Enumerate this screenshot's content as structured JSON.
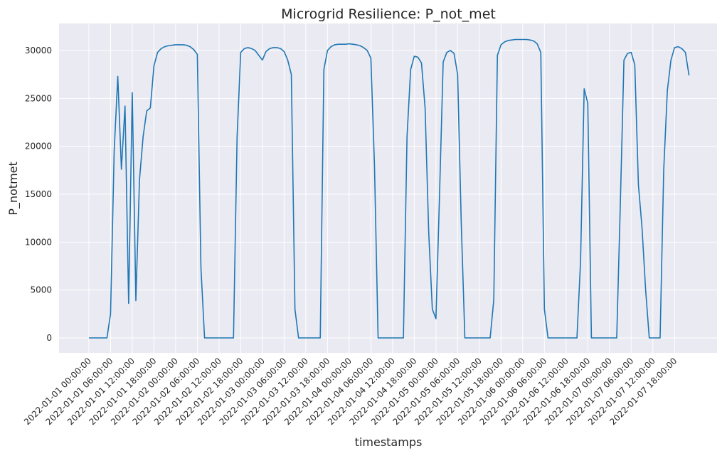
{
  "chart_data": {
    "type": "line",
    "title": "Microgrid Resilience: P_not_met",
    "x_label": "timestamps",
    "y_label": "P_notmet",
    "grid": true,
    "background": "#eaeaf2",
    "x": [
      "2022-01-01 00:00:00",
      "2022-01-01 01:00:00",
      "2022-01-01 02:00:00",
      "2022-01-01 03:00:00",
      "2022-01-01 04:00:00",
      "2022-01-01 05:00:00",
      "2022-01-01 06:00:00",
      "2022-01-01 07:00:00",
      "2022-01-01 08:00:00",
      "2022-01-01 09:00:00",
      "2022-01-01 10:00:00",
      "2022-01-01 11:00:00",
      "2022-01-01 12:00:00",
      "2022-01-01 13:00:00",
      "2022-01-01 14:00:00",
      "2022-01-01 15:00:00",
      "2022-01-01 16:00:00",
      "2022-01-01 17:00:00",
      "2022-01-01 18:00:00",
      "2022-01-01 19:00:00",
      "2022-01-01 20:00:00",
      "2022-01-01 21:00:00",
      "2022-01-01 22:00:00",
      "2022-01-01 23:00:00",
      "2022-01-02 00:00:00",
      "2022-01-02 01:00:00",
      "2022-01-02 02:00:00",
      "2022-01-02 03:00:00",
      "2022-01-02 04:00:00",
      "2022-01-02 05:00:00",
      "2022-01-02 06:00:00",
      "2022-01-02 07:00:00",
      "2022-01-02 08:00:00",
      "2022-01-02 09:00:00",
      "2022-01-02 10:00:00",
      "2022-01-02 11:00:00",
      "2022-01-02 12:00:00",
      "2022-01-02 13:00:00",
      "2022-01-02 14:00:00",
      "2022-01-02 15:00:00",
      "2022-01-02 16:00:00",
      "2022-01-02 17:00:00",
      "2022-01-02 18:00:00",
      "2022-01-02 19:00:00",
      "2022-01-02 20:00:00",
      "2022-01-02 21:00:00",
      "2022-01-02 22:00:00",
      "2022-01-02 23:00:00",
      "2022-01-03 00:00:00",
      "2022-01-03 01:00:00",
      "2022-01-03 02:00:00",
      "2022-01-03 03:00:00",
      "2022-01-03 04:00:00",
      "2022-01-03 05:00:00",
      "2022-01-03 06:00:00",
      "2022-01-03 07:00:00",
      "2022-01-03 08:00:00",
      "2022-01-03 09:00:00",
      "2022-01-03 10:00:00",
      "2022-01-03 11:00:00",
      "2022-01-03 12:00:00",
      "2022-01-03 13:00:00",
      "2022-01-03 14:00:00",
      "2022-01-03 15:00:00",
      "2022-01-03 16:00:00",
      "2022-01-03 17:00:00",
      "2022-01-03 18:00:00",
      "2022-01-03 19:00:00",
      "2022-01-03 20:00:00",
      "2022-01-03 21:00:00",
      "2022-01-03 22:00:00",
      "2022-01-03 23:00:00",
      "2022-01-04 00:00:00",
      "2022-01-04 01:00:00",
      "2022-01-04 02:00:00",
      "2022-01-04 03:00:00",
      "2022-01-04 04:00:00",
      "2022-01-04 05:00:00",
      "2022-01-04 06:00:00",
      "2022-01-04 07:00:00",
      "2022-01-04 08:00:00",
      "2022-01-04 09:00:00",
      "2022-01-04 10:00:00",
      "2022-01-04 11:00:00",
      "2022-01-04 12:00:00",
      "2022-01-04 13:00:00",
      "2022-01-04 14:00:00",
      "2022-01-04 15:00:00",
      "2022-01-04 16:00:00",
      "2022-01-04 17:00:00",
      "2022-01-04 18:00:00",
      "2022-01-04 19:00:00",
      "2022-01-04 20:00:00",
      "2022-01-04 21:00:00",
      "2022-01-04 22:00:00",
      "2022-01-04 23:00:00",
      "2022-01-05 00:00:00",
      "2022-01-05 01:00:00",
      "2022-01-05 02:00:00",
      "2022-01-05 03:00:00",
      "2022-01-05 04:00:00",
      "2022-01-05 05:00:00",
      "2022-01-05 06:00:00",
      "2022-01-05 07:00:00",
      "2022-01-05 08:00:00",
      "2022-01-05 09:00:00",
      "2022-01-05 10:00:00",
      "2022-01-05 11:00:00",
      "2022-01-05 12:00:00",
      "2022-01-05 13:00:00",
      "2022-01-05 14:00:00",
      "2022-01-05 15:00:00",
      "2022-01-05 16:00:00",
      "2022-01-05 17:00:00",
      "2022-01-05 18:00:00",
      "2022-01-05 19:00:00",
      "2022-01-05 20:00:00",
      "2022-01-05 21:00:00",
      "2022-01-05 22:00:00",
      "2022-01-05 23:00:00",
      "2022-01-06 00:00:00",
      "2022-01-06 01:00:00",
      "2022-01-06 02:00:00",
      "2022-01-06 03:00:00",
      "2022-01-06 04:00:00",
      "2022-01-06 05:00:00",
      "2022-01-06 06:00:00",
      "2022-01-06 07:00:00",
      "2022-01-06 08:00:00",
      "2022-01-06 09:00:00",
      "2022-01-06 10:00:00",
      "2022-01-06 11:00:00",
      "2022-01-06 12:00:00",
      "2022-01-06 13:00:00",
      "2022-01-06 14:00:00",
      "2022-01-06 15:00:00",
      "2022-01-06 16:00:00",
      "2022-01-06 17:00:00",
      "2022-01-06 18:00:00",
      "2022-01-06 19:00:00",
      "2022-01-06 20:00:00",
      "2022-01-06 21:00:00",
      "2022-01-06 22:00:00",
      "2022-01-06 23:00:00",
      "2022-01-07 00:00:00",
      "2022-01-07 01:00:00",
      "2022-01-07 02:00:00",
      "2022-01-07 03:00:00",
      "2022-01-07 04:00:00",
      "2022-01-07 05:00:00",
      "2022-01-07 06:00:00",
      "2022-01-07 07:00:00",
      "2022-01-07 08:00:00",
      "2022-01-07 09:00:00",
      "2022-01-07 10:00:00",
      "2022-01-07 11:00:00",
      "2022-01-07 12:00:00",
      "2022-01-07 13:00:00",
      "2022-01-07 14:00:00",
      "2022-01-07 15:00:00",
      "2022-01-07 16:00:00",
      "2022-01-07 17:00:00",
      "2022-01-07 18:00:00",
      "2022-01-07 19:00:00",
      "2022-01-07 20:00:00",
      "2022-01-07 21:00:00",
      "2022-01-07 22:00:00"
    ],
    "series": [
      {
        "name": "P_notmet",
        "color": "#1f77b4",
        "values": [
          0,
          0,
          0,
          0,
          0,
          0,
          2500,
          19500,
          27300,
          17600,
          24200,
          3600,
          25600,
          3900,
          16500,
          21000,
          23700,
          24000,
          28400,
          29800,
          30200,
          30400,
          30500,
          30550,
          30600,
          30600,
          30600,
          30550,
          30400,
          30100,
          29600,
          7300,
          0,
          0,
          0,
          0,
          0,
          0,
          0,
          0,
          0,
          21000,
          29800,
          30200,
          30300,
          30200,
          30000,
          29500,
          29000,
          29900,
          30200,
          30300,
          30300,
          30200,
          29900,
          29000,
          27500,
          3000,
          0,
          0,
          0,
          0,
          0,
          0,
          0,
          28000,
          30000,
          30400,
          30600,
          30650,
          30650,
          30650,
          30700,
          30650,
          30600,
          30500,
          30300,
          30000,
          29200,
          18000,
          0,
          0,
          0,
          0,
          0,
          0,
          0,
          0,
          21000,
          28000,
          29400,
          29300,
          28700,
          24000,
          11000,
          3000,
          2000,
          15000,
          28800,
          29800,
          30000,
          29700,
          27500,
          12000,
          0,
          0,
          0,
          0,
          0,
          0,
          0,
          0,
          4000,
          29500,
          30600,
          30900,
          31050,
          31100,
          31150,
          31150,
          31150,
          31150,
          31100,
          31000,
          30700,
          29800,
          3000,
          0,
          0,
          0,
          0,
          0,
          0,
          0,
          0,
          0,
          8000,
          26000,
          24500,
          0,
          0,
          0,
          0,
          0,
          0,
          0,
          0,
          14000,
          29000,
          29700,
          29800,
          28500,
          16000,
          11500,
          5000,
          0,
          0,
          0,
          0,
          17500,
          25800,
          29000,
          30300,
          30400,
          30200,
          29800,
          27400
        ]
      }
    ],
    "xlim": [
      "2021-12-31 15:45:00",
      "2022-01-08 05:45:00"
    ],
    "xticks": [
      "2022-01-01 00:00:00",
      "2022-01-01 06:00:00",
      "2022-01-01 12:00:00",
      "2022-01-01 18:00:00",
      "2022-01-02 00:00:00",
      "2022-01-02 06:00:00",
      "2022-01-02 12:00:00",
      "2022-01-02 18:00:00",
      "2022-01-03 00:00:00",
      "2022-01-03 06:00:00",
      "2022-01-03 12:00:00",
      "2022-01-03 18:00:00",
      "2022-01-04 00:00:00",
      "2022-01-04 06:00:00",
      "2022-01-04 12:00:00",
      "2022-01-04 18:00:00",
      "2022-01-05 00:00:00",
      "2022-01-05 06:00:00",
      "2022-01-05 12:00:00",
      "2022-01-05 18:00:00",
      "2022-01-06 00:00:00",
      "2022-01-06 06:00:00",
      "2022-01-06 12:00:00",
      "2022-01-06 18:00:00",
      "2022-01-07 00:00:00",
      "2022-01-07 06:00:00",
      "2022-01-07 12:00:00",
      "2022-01-07 18:00:00"
    ],
    "ylim": [
      -1560,
      32820
    ],
    "yticks": [
      0,
      5000,
      10000,
      15000,
      20000,
      25000,
      30000
    ]
  }
}
